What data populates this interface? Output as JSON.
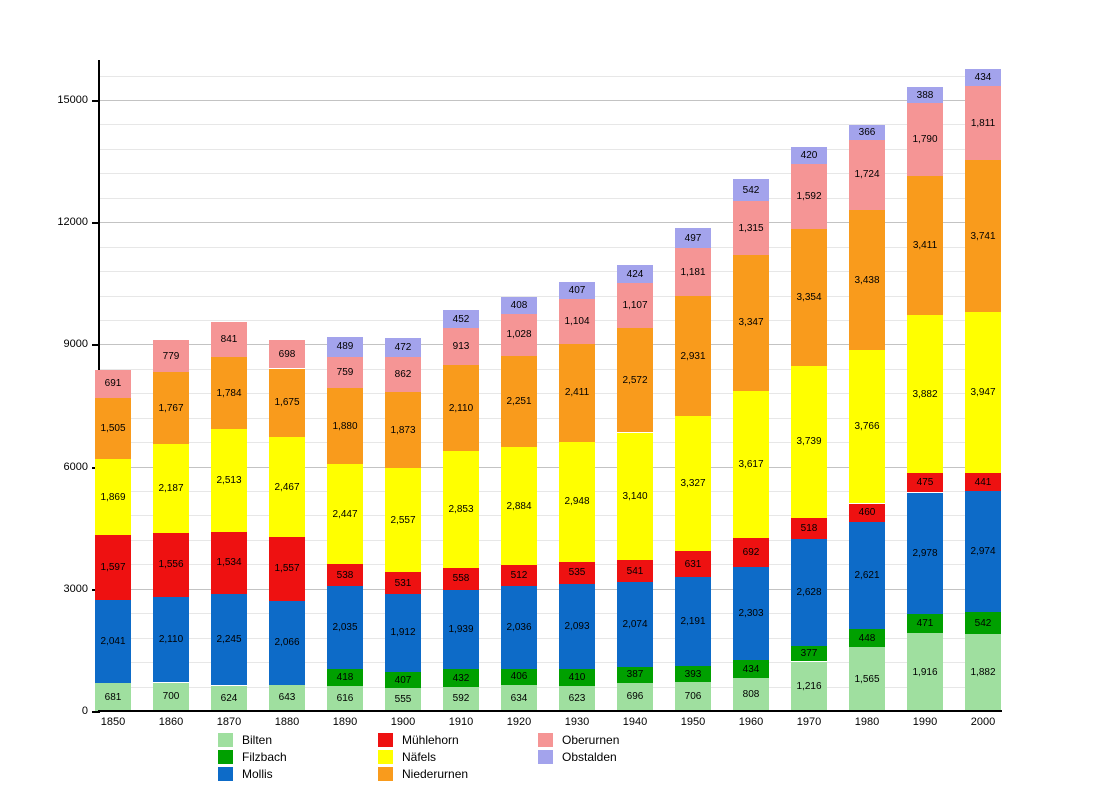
{
  "chart_data": {
    "type": "bar",
    "stacked": true,
    "title": "",
    "xlabel": "",
    "ylabel": "",
    "categories": [
      "1850",
      "1860",
      "1870",
      "1880",
      "1890",
      "1900",
      "1910",
      "1920",
      "1930",
      "1940",
      "1950",
      "1960",
      "1970",
      "1980",
      "1990",
      "2000"
    ],
    "series": [
      {
        "name": "Bilten",
        "color": "#9FDF9F",
        "values": [
          681,
          700,
          624,
          643,
          616,
          555,
          592,
          634,
          623,
          696,
          706,
          808,
          1216,
          1565,
          1916,
          1882
        ]
      },
      {
        "name": "Filzbach",
        "color": "#00A000",
        "values": [
          null,
          null,
          null,
          null,
          418,
          407,
          432,
          406,
          410,
          387,
          393,
          434,
          377,
          448,
          471,
          542
        ]
      },
      {
        "name": "Mollis",
        "color": "#0D6BC8",
        "values": [
          2041,
          2110,
          2245,
          2066,
          2035,
          1912,
          1939,
          2036,
          2093,
          2074,
          2191,
          2303,
          2628,
          2621,
          2978,
          2974
        ]
      },
      {
        "name": "Mühlehorn",
        "color": "#EE1111",
        "values": [
          1597,
          1556,
          1534,
          1557,
          538,
          531,
          558,
          512,
          535,
          541,
          631,
          692,
          518,
          460,
          475,
          441
        ]
      },
      {
        "name": "Näfels",
        "color": "#FFFF00",
        "values": [
          1869,
          2187,
          2513,
          2467,
          2447,
          2557,
          2853,
          2884,
          2948,
          3140,
          3327,
          3617,
          3739,
          3766,
          3882,
          3947
        ]
      },
      {
        "name": "Niederurnen",
        "color": "#F99B1C",
        "values": [
          1505,
          1767,
          1784,
          1675,
          1880,
          1873,
          2110,
          2251,
          2411,
          2572,
          2931,
          3347,
          3354,
          3438,
          3411,
          3741
        ]
      },
      {
        "name": "Oberurnen",
        "color": "#F59595",
        "values": [
          691,
          779,
          841,
          698,
          759,
          862,
          913,
          1028,
          1104,
          1107,
          1181,
          1315,
          1592,
          1724,
          1790,
          1811
        ]
      },
      {
        "name": "Obstalden",
        "color": "#A3A3EC",
        "values": [
          null,
          null,
          null,
          null,
          489,
          472,
          452,
          408,
          407,
          424,
          497,
          542,
          420,
          366,
          388,
          434
        ]
      }
    ],
    "y_axis": {
      "min": 0,
      "max": 15000,
      "major_step": 3000,
      "minor_step": 600,
      "tick_labels": [
        "0",
        "3000",
        "6000",
        "9000",
        "12000",
        "15000"
      ]
    },
    "grid": true,
    "value_labels": true,
    "number_format": "thousands-comma",
    "legend_position": "bottom",
    "legend_columns": [
      [
        "Bilten",
        "Filzbach",
        "Mollis"
      ],
      [
        "Mühlehorn",
        "Näfels",
        "Niederurnen"
      ],
      [
        "Oberurnen",
        "Obstalden"
      ]
    ]
  }
}
